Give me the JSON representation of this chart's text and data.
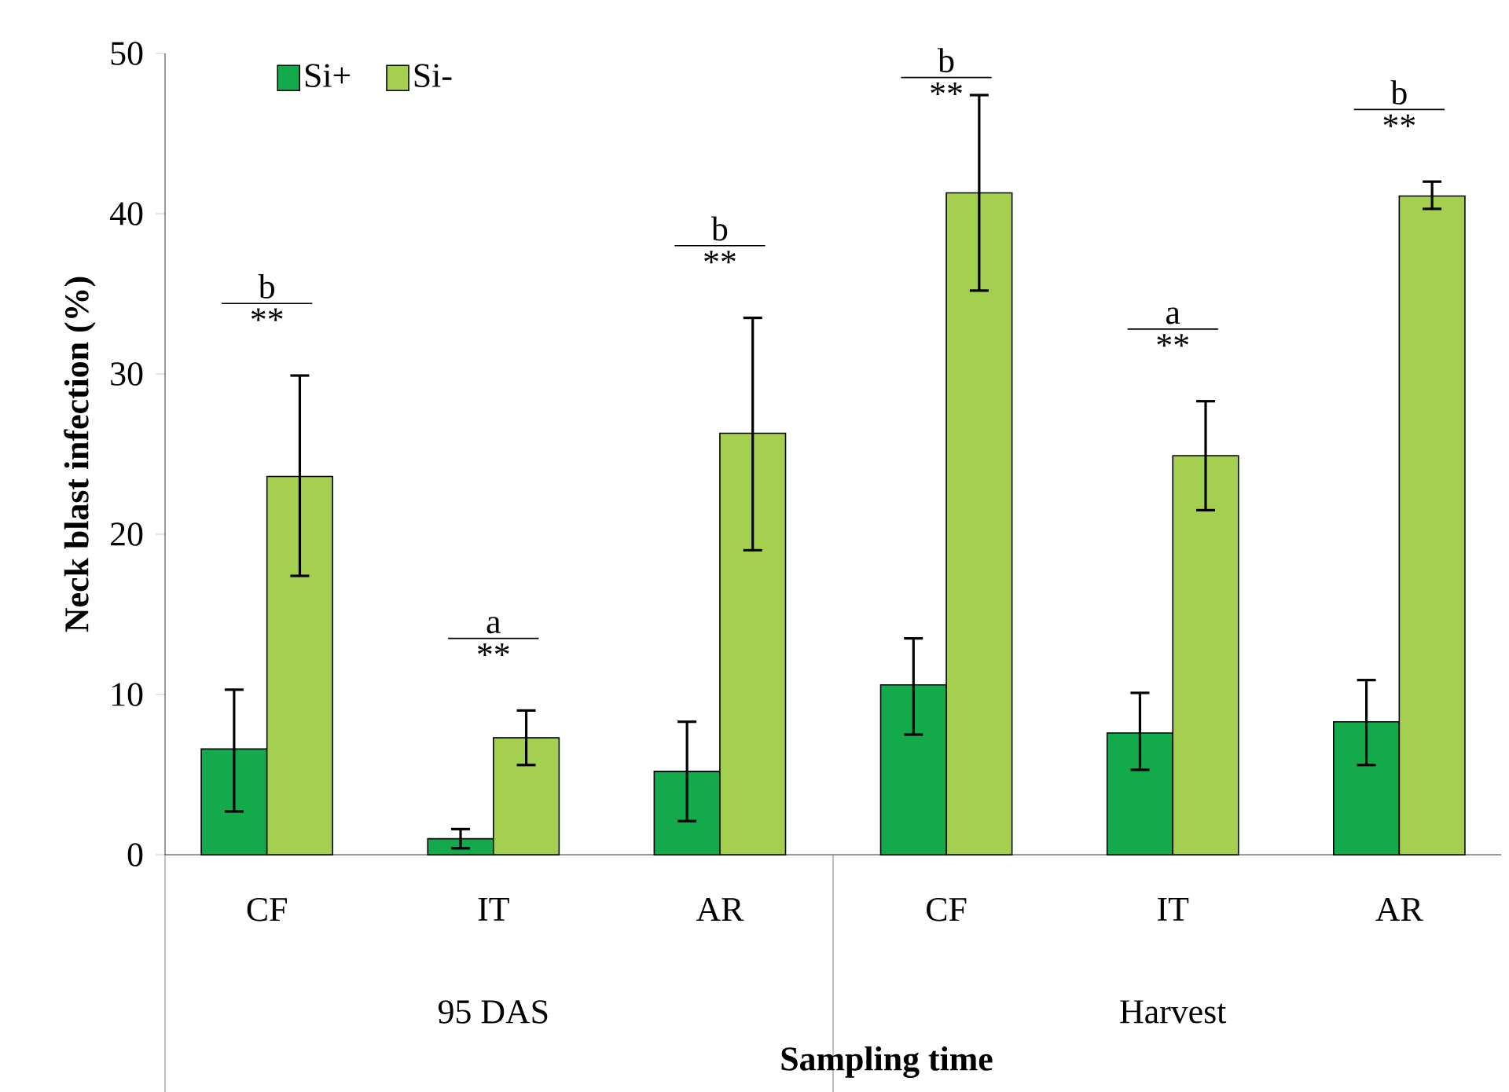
{
  "chart_data": {
    "type": "bar",
    "ylabel": "Neck blast infection (%)",
    "xlabel": "Sampling time",
    "categories": [
      "CF",
      "IT",
      "AR",
      "CF",
      "IT",
      "AR"
    ],
    "series": [
      {
        "name": "Si+",
        "color": "#12aa4a",
        "values": [
          6.6,
          1.0,
          5.2,
          10.6,
          7.6,
          8.3
        ],
        "errors": [
          [
            2.7,
            10.3
          ],
          [
            0.4,
            1.6
          ],
          [
            2.1,
            8.3
          ],
          [
            7.5,
            13.5
          ],
          [
            5.3,
            10.1
          ],
          [
            5.6,
            10.9
          ]
        ]
      },
      {
        "name": "Si-",
        "color": "#a5d04f",
        "values": [
          23.6,
          7.3,
          26.3,
          41.3,
          24.9,
          41.1
        ],
        "errors": [
          [
            17.4,
            29.9
          ],
          [
            5.6,
            9.0
          ],
          [
            19.0,
            33.5
          ],
          [
            35.2,
            47.4
          ],
          [
            21.5,
            28.3
          ],
          [
            40.3,
            42.0
          ]
        ]
      }
    ],
    "ylim": [
      0,
      50
    ],
    "yticks": [
      0,
      10,
      20,
      30,
      40,
      50
    ],
    "legend": "top left",
    "grid": false,
    "annotations": [
      "b",
      "**",
      "a",
      "**",
      "b",
      "**",
      "b",
      "**",
      "a",
      "**",
      "b",
      "**",
      "95 DAS",
      "Harvest"
    ]
  }
}
